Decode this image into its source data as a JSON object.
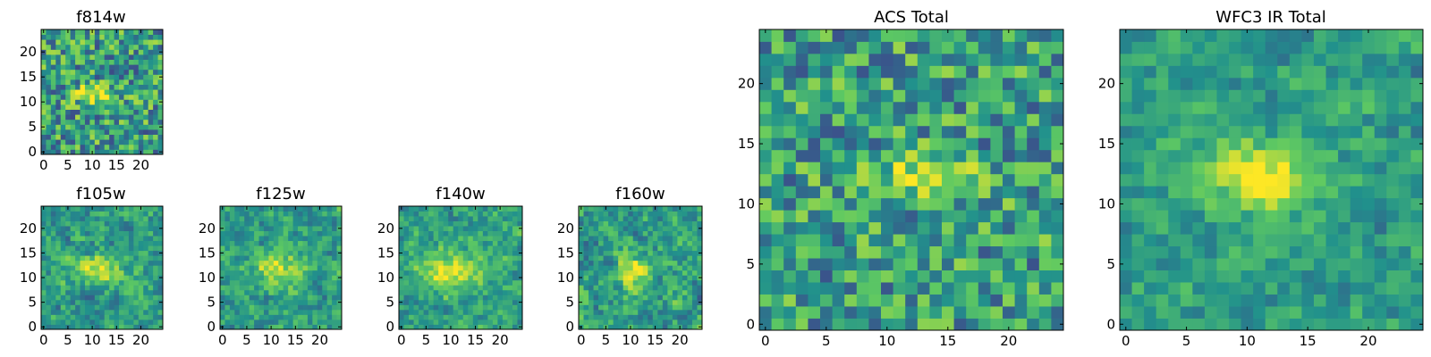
{
  "figure": {
    "colormap": "viridis",
    "colors": [
      "#440154",
      "#3b528b",
      "#21918c",
      "#5ec962",
      "#fde725"
    ]
  },
  "chart_data": [
    {
      "id": "f814w",
      "type": "heatmap",
      "title": "f814w",
      "grid_size": 25,
      "seed": 11,
      "source": {
        "cx": 10.5,
        "cy": 11.5,
        "sx": 3.0,
        "sy": 1.2,
        "amp": 0.45
      },
      "noise": 0.32,
      "smooth": 0,
      "xticks": [
        "0",
        "5",
        "10",
        "15",
        "20"
      ],
      "yticks": [
        "0",
        "5",
        "10",
        "15",
        "20"
      ],
      "xtick_values": [
        0,
        5,
        10,
        15,
        20
      ],
      "ytick_values": [
        0,
        5,
        10,
        15,
        20
      ]
    },
    {
      "id": "f105w",
      "type": "heatmap",
      "title": "f105w",
      "grid_size": 25,
      "seed": 21,
      "source": {
        "cx": 11.0,
        "cy": 11.5,
        "sx": 4.0,
        "sy": 2.0,
        "amp": 0.35
      },
      "noise": 0.28,
      "smooth": 1,
      "xticks": [
        "0",
        "5",
        "10",
        "15",
        "20"
      ],
      "yticks": [
        "0",
        "5",
        "10",
        "15",
        "20"
      ],
      "xtick_values": [
        0,
        5,
        10,
        15,
        20
      ],
      "ytick_values": [
        0,
        5,
        10,
        15,
        20
      ]
    },
    {
      "id": "f125w",
      "type": "heatmap",
      "title": "f125w",
      "grid_size": 25,
      "seed": 31,
      "source": {
        "cx": 11.5,
        "cy": 12.0,
        "sx": 4.0,
        "sy": 2.5,
        "amp": 0.35
      },
      "noise": 0.26,
      "smooth": 1,
      "xticks": [
        "0",
        "5",
        "10",
        "15",
        "20"
      ],
      "yticks": [
        "0",
        "5",
        "10",
        "15",
        "20"
      ],
      "xtick_values": [
        0,
        5,
        10,
        15,
        20
      ],
      "ytick_values": [
        0,
        5,
        10,
        15,
        20
      ]
    },
    {
      "id": "f140w",
      "type": "heatmap",
      "title": "f140w",
      "grid_size": 25,
      "seed": 41,
      "source": {
        "cx": 10.5,
        "cy": 11.5,
        "sx": 5.0,
        "sy": 3.0,
        "amp": 0.4
      },
      "noise": 0.25,
      "smooth": 1,
      "xticks": [
        "0",
        "5",
        "10",
        "15",
        "20"
      ],
      "yticks": [
        "0",
        "5",
        "10",
        "15",
        "20"
      ],
      "xtick_values": [
        0,
        5,
        10,
        15,
        20
      ],
      "ytick_values": [
        0,
        5,
        10,
        15,
        20
      ]
    },
    {
      "id": "f160w",
      "type": "heatmap",
      "title": "f160w",
      "grid_size": 25,
      "seed": 51,
      "source": {
        "cx": 11.0,
        "cy": 11.0,
        "sx": 2.5,
        "sy": 2.5,
        "amp": 0.45
      },
      "noise": 0.3,
      "smooth": 1,
      "xticks": [
        "0",
        "5",
        "10",
        "15",
        "20"
      ],
      "yticks": [
        "0",
        "5",
        "10",
        "15",
        "20"
      ],
      "xtick_values": [
        0,
        5,
        10,
        15,
        20
      ],
      "ytick_values": [
        0,
        5,
        10,
        15,
        20
      ]
    },
    {
      "id": "acs-total",
      "type": "heatmap",
      "title": "ACS Total",
      "grid_size": 25,
      "seed": 61,
      "source": {
        "cx": 13.0,
        "cy": 12.0,
        "sx": 3.0,
        "sy": 1.3,
        "amp": 0.4
      },
      "noise": 0.3,
      "smooth": 0,
      "xticks": [
        "0",
        "5",
        "10",
        "15",
        "20"
      ],
      "yticks": [
        "0",
        "5",
        "10",
        "15",
        "20"
      ],
      "xtick_values": [
        0,
        5,
        10,
        15,
        20
      ],
      "ytick_values": [
        0,
        5,
        10,
        15,
        20
      ]
    },
    {
      "id": "wfc3-ir-total",
      "type": "heatmap",
      "title": "WFC3 IR Total",
      "grid_size": 25,
      "seed": 71,
      "source": {
        "cx": 11.5,
        "cy": 12.0,
        "sx": 3.5,
        "sy": 1.8,
        "amp": 0.5
      },
      "noise": 0.22,
      "smooth": 1,
      "xticks": [
        "0",
        "5",
        "10",
        "15",
        "20"
      ],
      "yticks": [
        "0",
        "5",
        "10",
        "15",
        "20"
      ],
      "xtick_values": [
        0,
        5,
        10,
        15,
        20
      ],
      "ytick_values": [
        0,
        5,
        10,
        15,
        20
      ]
    }
  ]
}
